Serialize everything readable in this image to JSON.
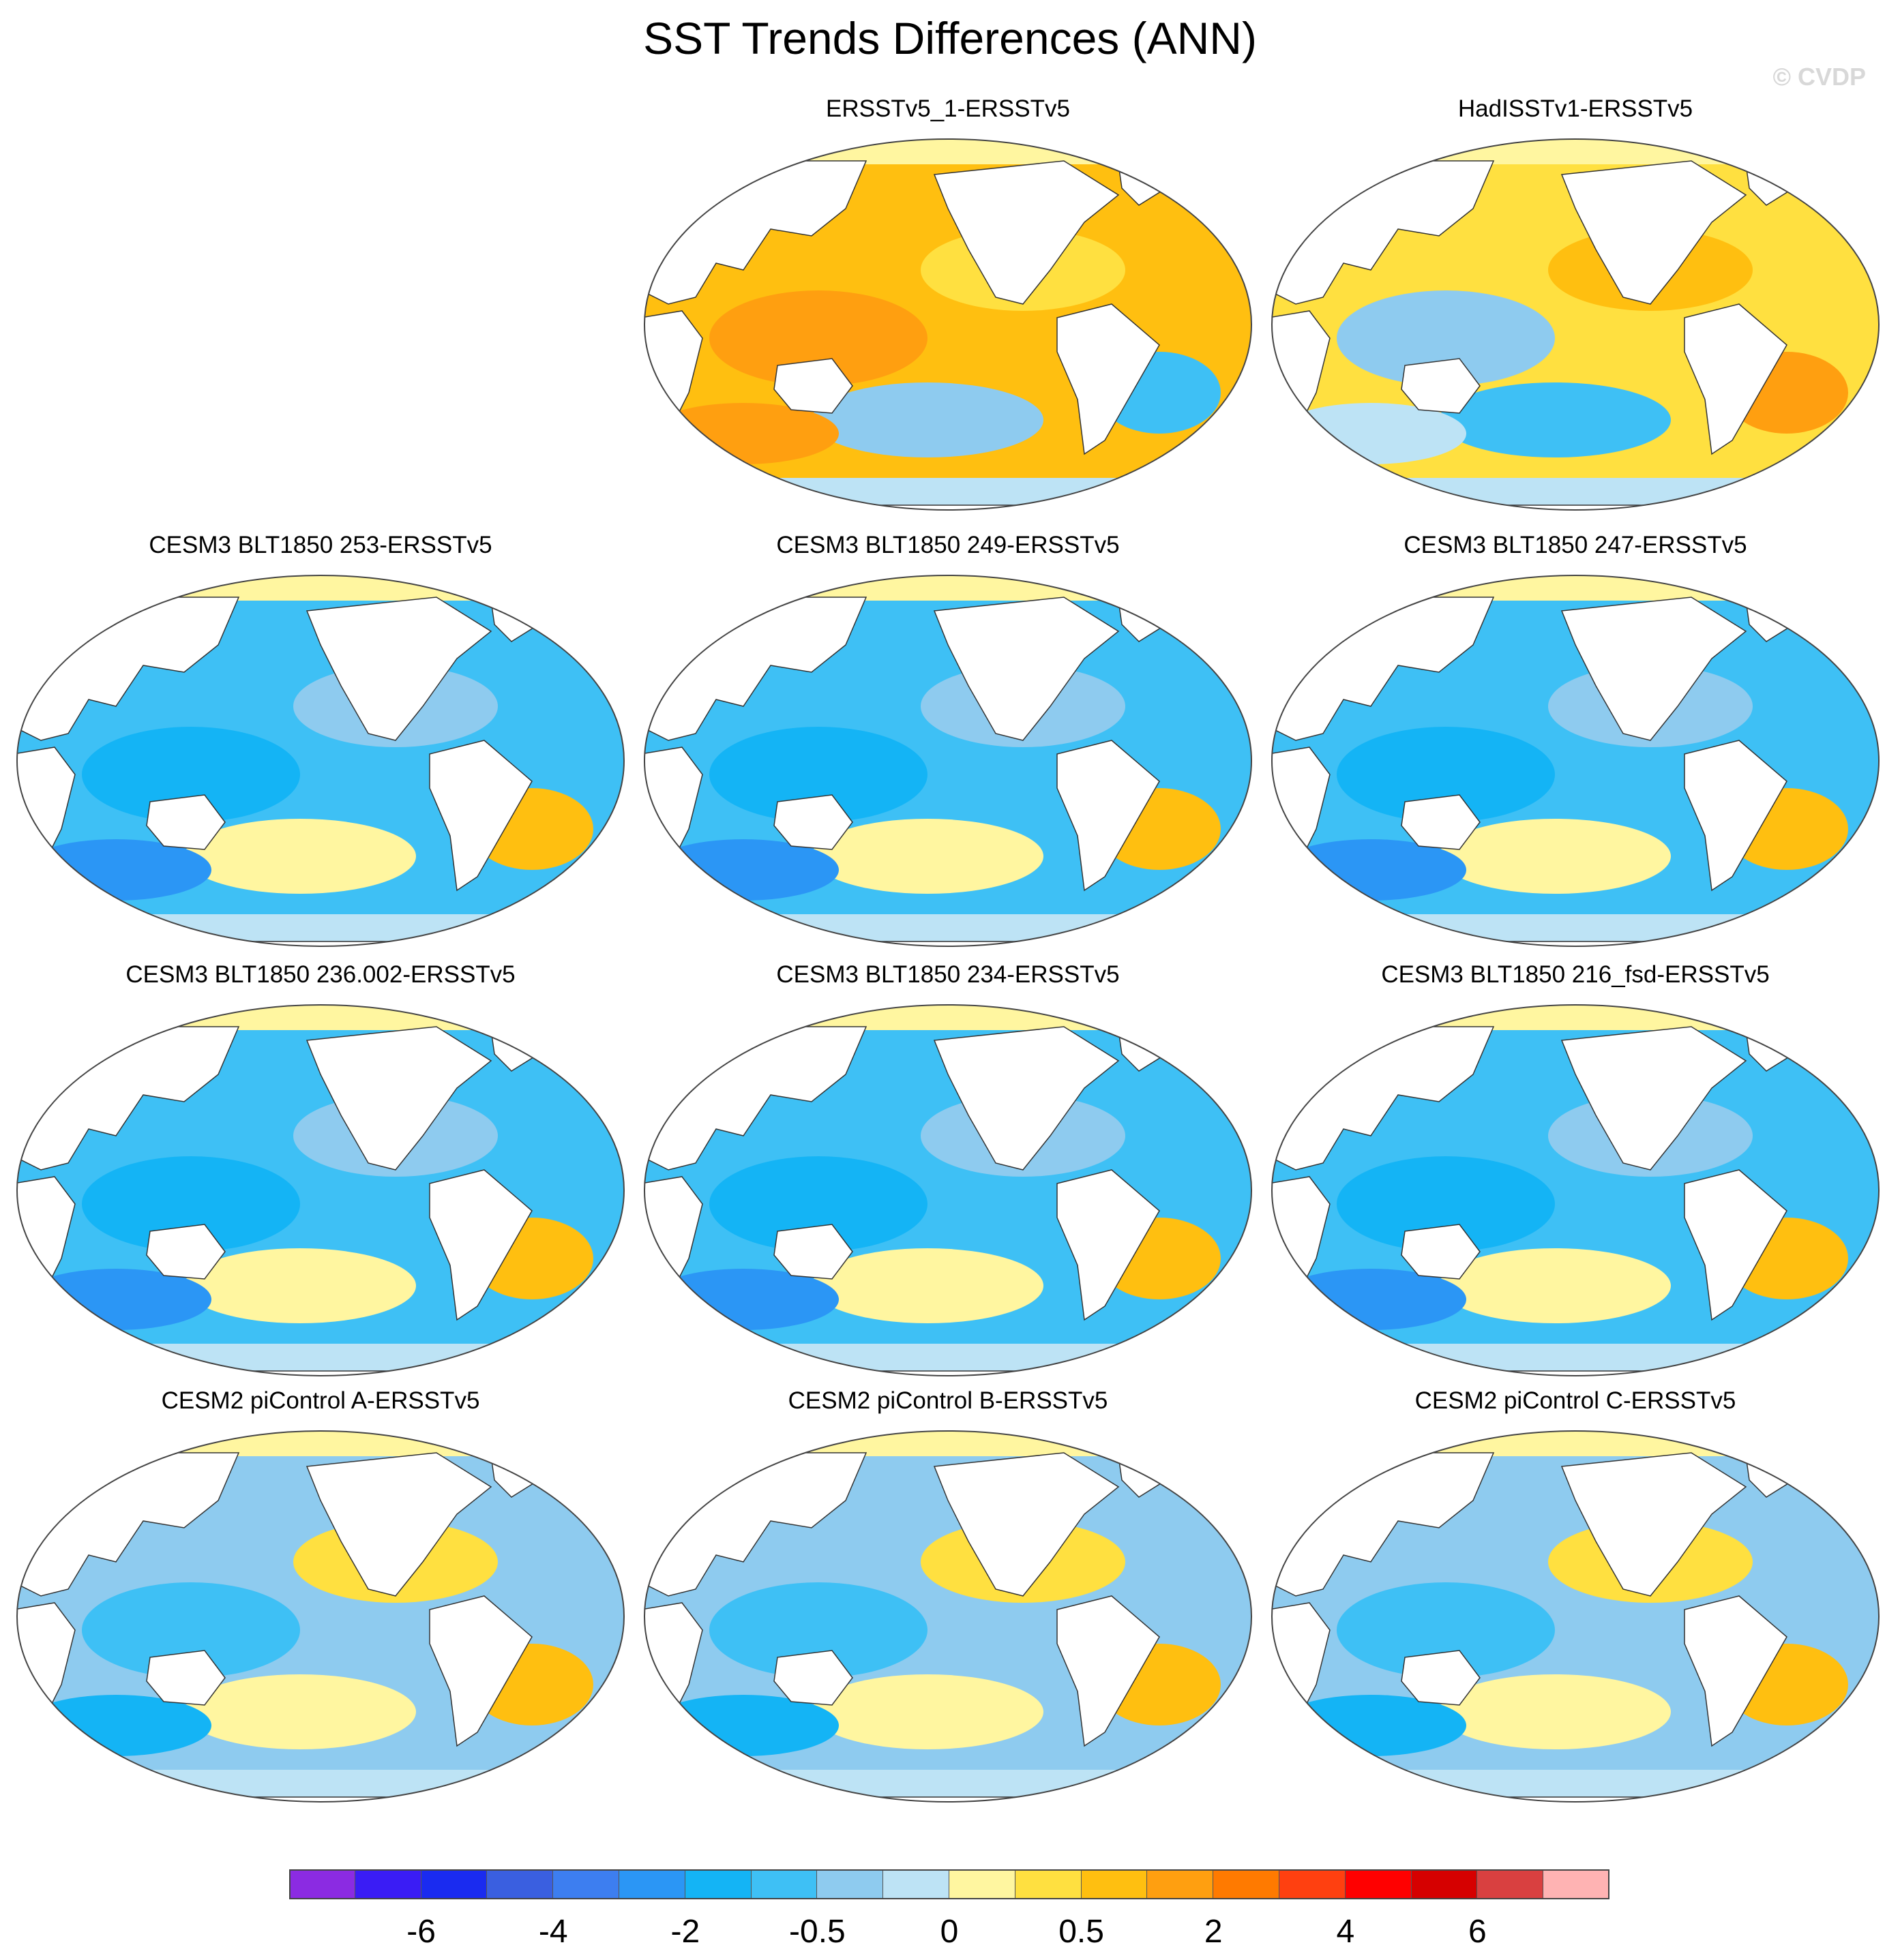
{
  "title": "SST Trends Differences (ANN)",
  "watermark": "© CVDP",
  "panels": [
    {
      "title": "ERSSTv5_1-ERSSTv5",
      "theme": "warm"
    },
    {
      "title": "HadISSTv1-ERSSTv5",
      "theme": "mixed-warm"
    },
    {
      "title": "CESM3 BLT1850 253-ERSSTv5",
      "theme": "cool"
    },
    {
      "title": "CESM3 BLT1850 249-ERSSTv5",
      "theme": "cool"
    },
    {
      "title": "CESM3 BLT1850 247-ERSSTv5",
      "theme": "cool"
    },
    {
      "title": "CESM3 BLT1850 236.002-ERSSTv5",
      "theme": "cool"
    },
    {
      "title": "CESM3 BLT1850 234-ERSSTv5",
      "theme": "cool"
    },
    {
      "title": "CESM3 BLT1850 216_fsd-ERSSTv5",
      "theme": "cool"
    },
    {
      "title": "CESM2 piControl A-ERSSTv5",
      "theme": "mixed-cool"
    },
    {
      "title": "CESM2 piControl B-ERSSTv5",
      "theme": "mixed-cool"
    },
    {
      "title": "CESM2 piControl C-ERSSTv5",
      "theme": "mixed-cool"
    }
  ],
  "colorbar": {
    "colors": [
      "#8b2be2",
      "#3a1cf5",
      "#1a2bf0",
      "#3a5fe0",
      "#3d7ef0",
      "#2b96f5",
      "#14b4f5",
      "#3ec0f5",
      "#8ecbef",
      "#bde3f5",
      "#fff6a0",
      "#ffe040",
      "#ffbf10",
      "#ff9f10",
      "#ff7a00",
      "#ff4010",
      "#ff0000",
      "#d60000",
      "#d94040",
      "#ffb3b3"
    ],
    "labels": [
      "-6",
      "-4",
      "-2",
      "-0.5",
      "0",
      "0.5",
      "2",
      "4",
      "6"
    ]
  }
}
